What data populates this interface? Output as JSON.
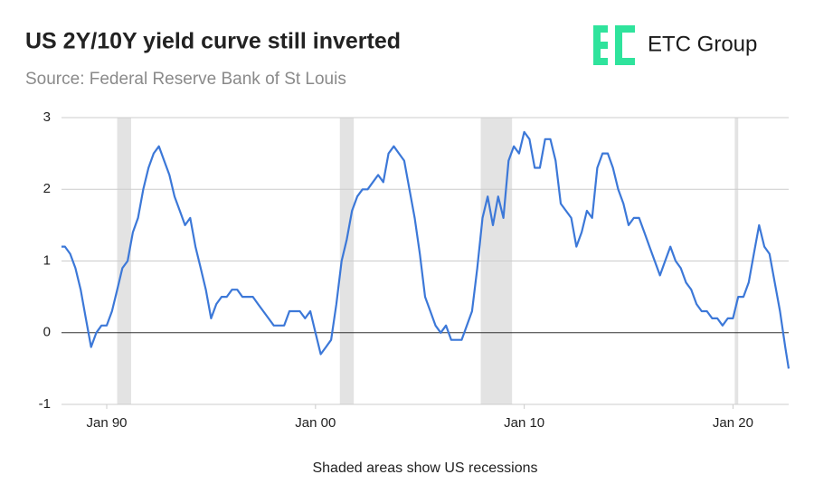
{
  "chart_data": {
    "type": "line",
    "title": "US 2Y/10Y yield curve still inverted",
    "subtitle": "Source: Federal Reserve Bank of St Louis",
    "logo": "ETC Group",
    "note": "Shaded areas show US recessions",
    "color": "#3c78d8",
    "recession_color": "#e3e3e3",
    "x": [
      "1987-11",
      "1988-01",
      "1988-04",
      "1988-07",
      "1988-10",
      "1989-01",
      "1989-04",
      "1989-07",
      "1989-10",
      "1990-01",
      "1990-04",
      "1990-07",
      "1990-10",
      "1991-01",
      "1991-04",
      "1991-07",
      "1991-10",
      "1992-01",
      "1992-04",
      "1992-07",
      "1992-10",
      "1993-01",
      "1993-04",
      "1993-07",
      "1993-10",
      "1994-01",
      "1994-04",
      "1994-07",
      "1994-10",
      "1995-01",
      "1995-04",
      "1995-07",
      "1995-10",
      "1996-01",
      "1996-04",
      "1996-07",
      "1996-10",
      "1997-01",
      "1997-04",
      "1997-07",
      "1997-10",
      "1998-01",
      "1998-04",
      "1998-07",
      "1998-10",
      "1999-01",
      "1999-04",
      "1999-07",
      "1999-10",
      "2000-01",
      "2000-04",
      "2000-07",
      "2000-10",
      "2001-01",
      "2001-04",
      "2001-07",
      "2001-10",
      "2002-01",
      "2002-04",
      "2002-07",
      "2002-10",
      "2003-01",
      "2003-04",
      "2003-07",
      "2003-10",
      "2004-01",
      "2004-04",
      "2004-07",
      "2004-10",
      "2005-01",
      "2005-04",
      "2005-07",
      "2005-10",
      "2006-01",
      "2006-04",
      "2006-07",
      "2006-10",
      "2007-01",
      "2007-04",
      "2007-07",
      "2007-10",
      "2008-01",
      "2008-04",
      "2008-07",
      "2008-10",
      "2009-01",
      "2009-04",
      "2009-07",
      "2009-10",
      "2010-01",
      "2010-04",
      "2010-07",
      "2010-10",
      "2011-01",
      "2011-04",
      "2011-07",
      "2011-10",
      "2012-01",
      "2012-04",
      "2012-07",
      "2012-10",
      "2013-01",
      "2013-04",
      "2013-07",
      "2013-10",
      "2014-01",
      "2014-04",
      "2014-07",
      "2014-10",
      "2015-01",
      "2015-04",
      "2015-07",
      "2015-10",
      "2016-01",
      "2016-04",
      "2016-07",
      "2016-10",
      "2017-01",
      "2017-04",
      "2017-07",
      "2017-10",
      "2018-01",
      "2018-04",
      "2018-07",
      "2018-10",
      "2019-01",
      "2019-04",
      "2019-07",
      "2019-10",
      "2020-01",
      "2020-04",
      "2020-07",
      "2020-10",
      "2021-01",
      "2021-04",
      "2021-07",
      "2021-10",
      "2022-01",
      "2022-04",
      "2022-07",
      "2022-09"
    ],
    "values": [
      1.2,
      1.2,
      1.1,
      0.9,
      0.6,
      0.2,
      -0.2,
      0.0,
      0.1,
      0.1,
      0.3,
      0.6,
      0.9,
      1.0,
      1.4,
      1.6,
      2.0,
      2.3,
      2.5,
      2.6,
      2.4,
      2.2,
      1.9,
      1.7,
      1.5,
      1.6,
      1.2,
      0.9,
      0.6,
      0.2,
      0.4,
      0.5,
      0.5,
      0.6,
      0.6,
      0.5,
      0.5,
      0.5,
      0.4,
      0.3,
      0.2,
      0.1,
      0.1,
      0.1,
      0.3,
      0.3,
      0.3,
      0.2,
      0.3,
      0.0,
      -0.3,
      -0.2,
      -0.1,
      0.4,
      1.0,
      1.3,
      1.7,
      1.9,
      2.0,
      2.0,
      2.1,
      2.2,
      2.1,
      2.5,
      2.6,
      2.5,
      2.4,
      2.0,
      1.6,
      1.1,
      0.5,
      0.3,
      0.1,
      0.0,
      0.1,
      -0.1,
      -0.1,
      -0.1,
      0.1,
      0.3,
      0.9,
      1.6,
      1.9,
      1.5,
      1.9,
      1.6,
      2.4,
      2.6,
      2.5,
      2.8,
      2.7,
      2.3,
      2.3,
      2.7,
      2.7,
      2.4,
      1.8,
      1.7,
      1.6,
      1.2,
      1.4,
      1.7,
      1.6,
      2.3,
      2.5,
      2.5,
      2.3,
      2.0,
      1.8,
      1.5,
      1.6,
      1.6,
      1.4,
      1.2,
      1.0,
      0.8,
      1.0,
      1.2,
      1.0,
      0.9,
      0.7,
      0.6,
      0.4,
      0.3,
      0.3,
      0.2,
      0.2,
      0.1,
      0.2,
      0.2,
      0.5,
      0.5,
      0.7,
      1.1,
      1.5,
      1.2,
      1.1,
      0.7,
      0.3,
      -0.2,
      -0.5
    ],
    "recessions": [
      {
        "start": "1990-07",
        "end": "1991-03"
      },
      {
        "start": "2001-03",
        "end": "2001-11"
      },
      {
        "start": "2007-12",
        "end": "2009-06"
      },
      {
        "start": "2020-02",
        "end": "2020-04"
      }
    ],
    "xlim": [
      "1987-11",
      "2022-09"
    ],
    "xticks": [
      {
        "value": "1990-01",
        "label": "Jan 90"
      },
      {
        "value": "2000-01",
        "label": "Jan 00"
      },
      {
        "value": "2010-01",
        "label": "Jan 10"
      },
      {
        "value": "2020-01",
        "label": "Jan 20"
      }
    ],
    "ylim": [
      -1,
      3
    ],
    "yticks": [
      -1,
      0,
      1,
      2,
      3
    ],
    "grid": true
  }
}
